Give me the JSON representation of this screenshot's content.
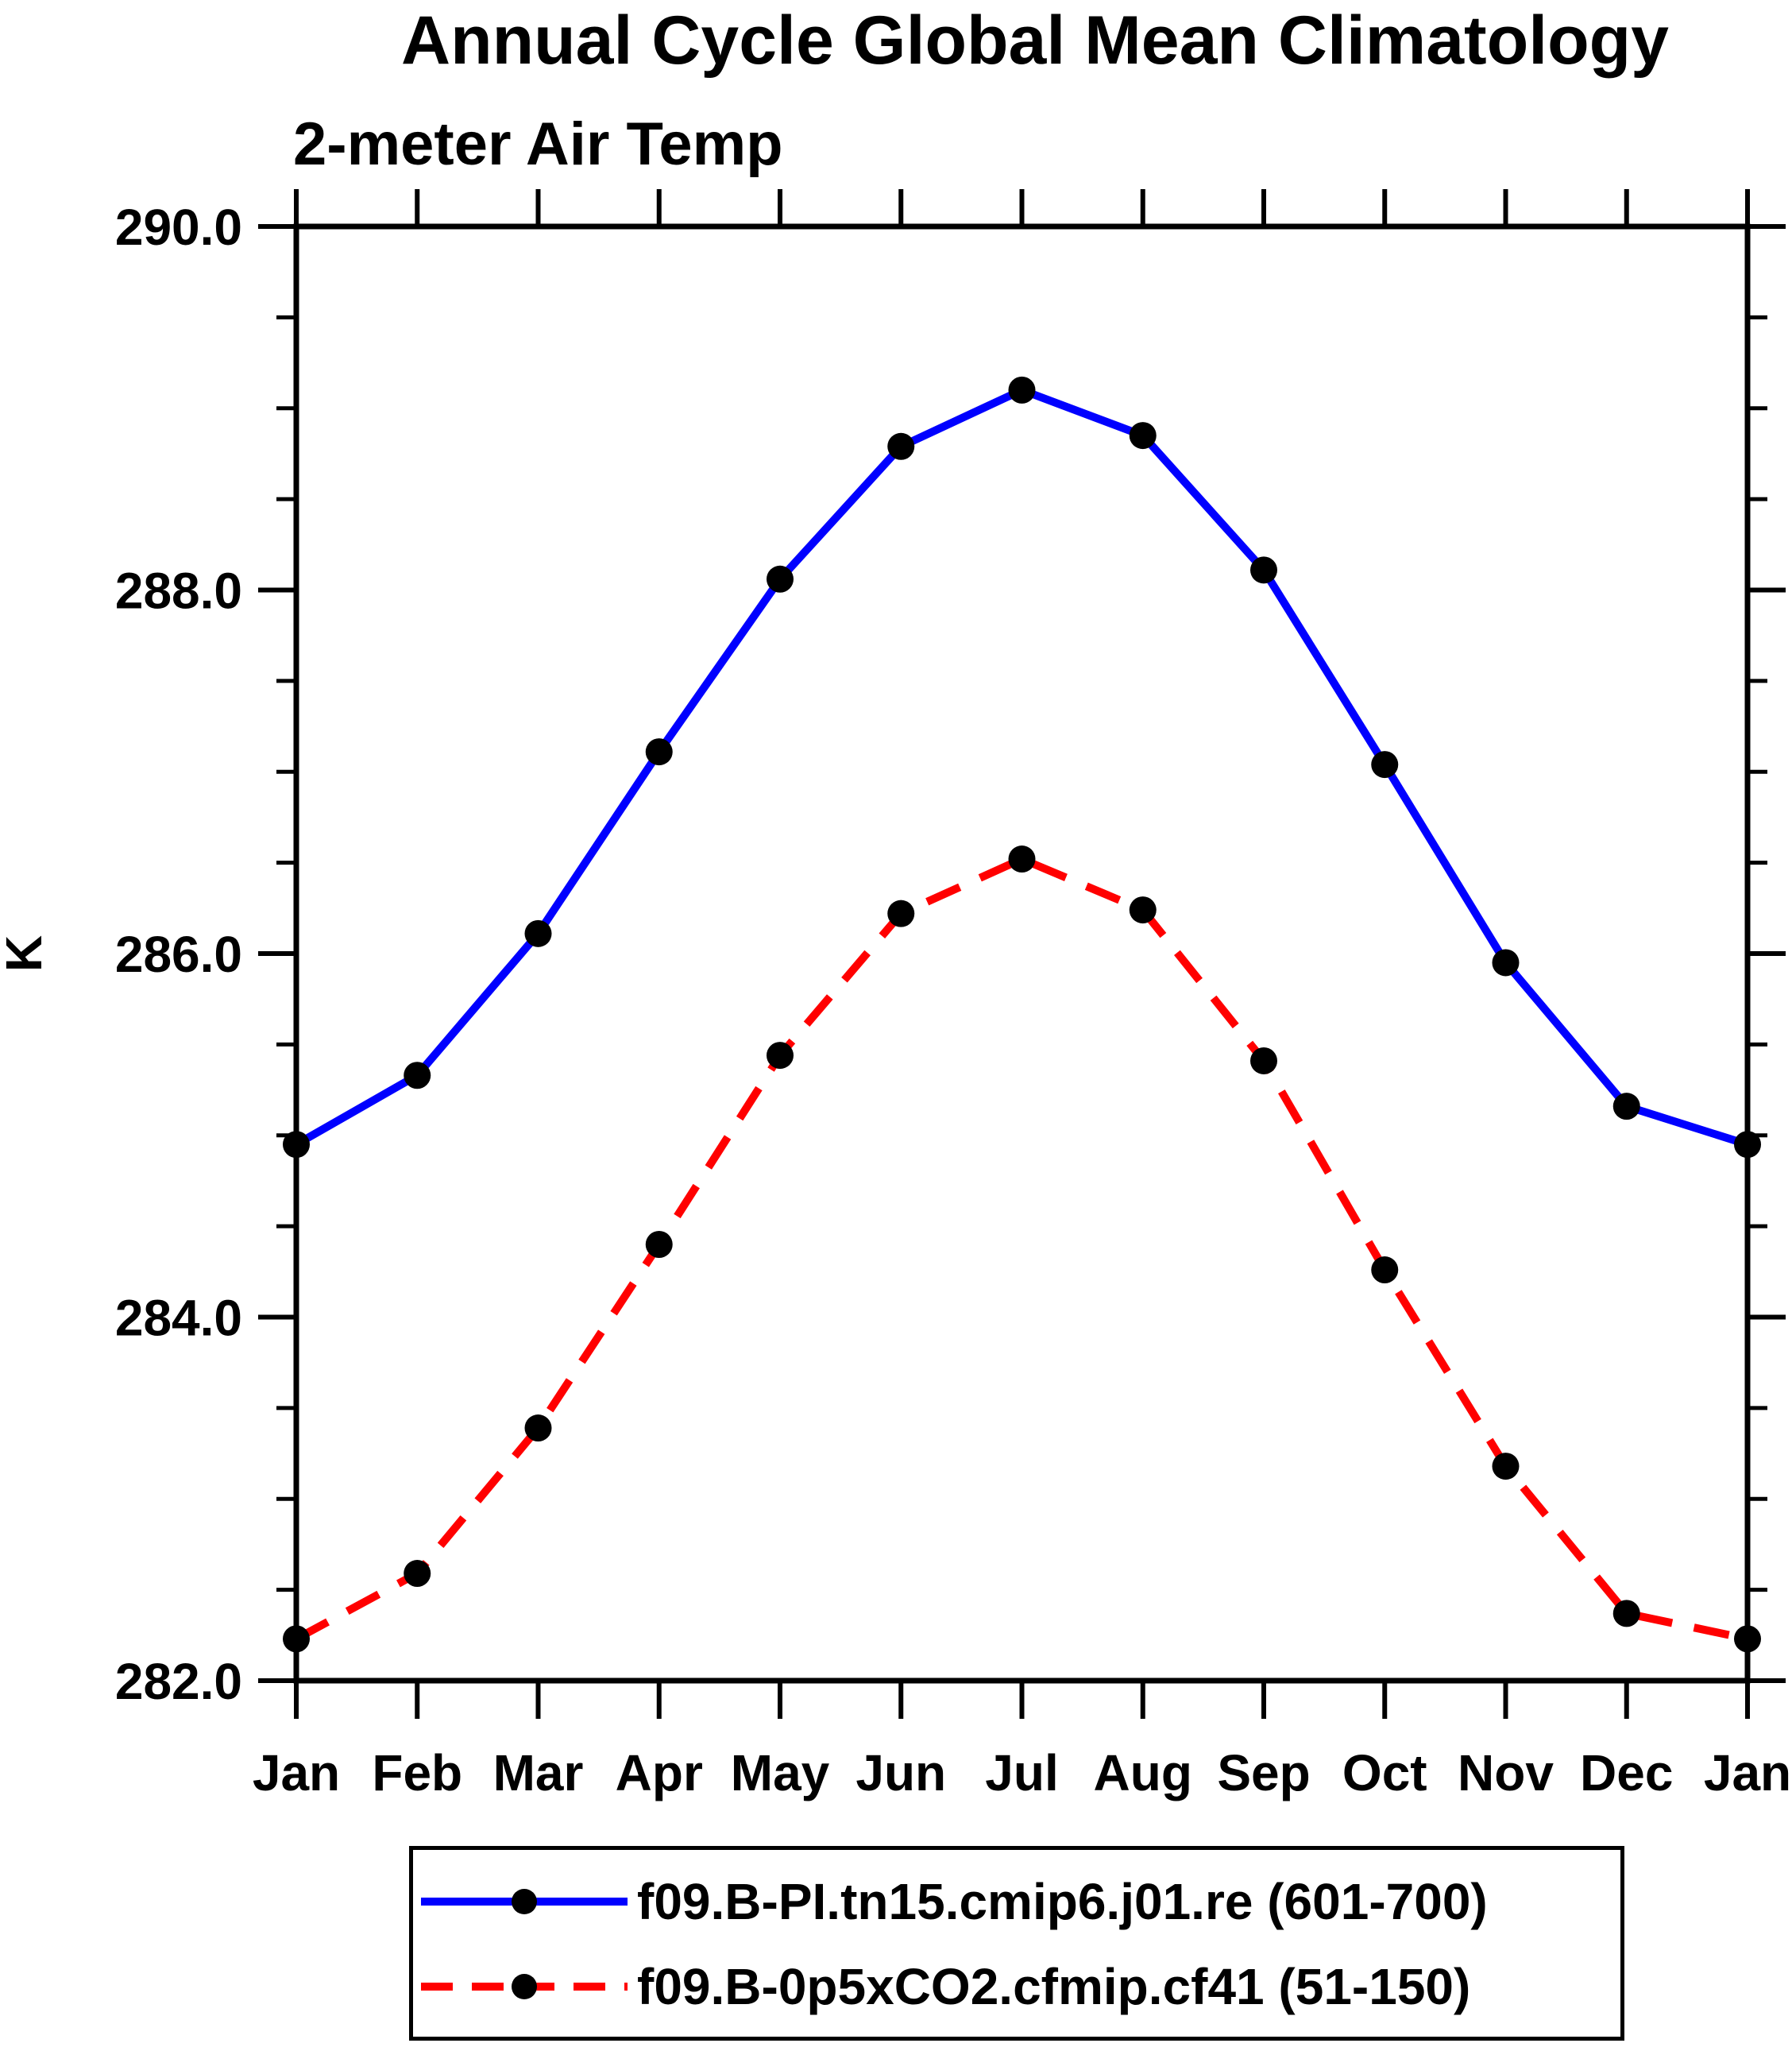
{
  "title": "Annual Cycle Global Mean Climatology",
  "subtitle": "2-meter Air Temp",
  "ylabel": "K",
  "colors": {
    "axis": "#000000",
    "marker": "#000000",
    "series1": "#0000ff",
    "series2": "#ff0000"
  },
  "chart_data": {
    "type": "line",
    "categories": [
      "Jan",
      "Feb",
      "Mar",
      "Apr",
      "May",
      "Jun",
      "Jul",
      "Aug",
      "Sep",
      "Oct",
      "Nov",
      "Dec",
      "Jan"
    ],
    "series": [
      {
        "name": "f09.B-PI.tn15.cmip6.j01.re (601-700)",
        "color": "#0000ff",
        "line_style": "solid",
        "marker": "circle",
        "values": [
          284.95,
          285.33,
          286.11,
          287.11,
          288.06,
          288.79,
          289.1,
          288.85,
          288.11,
          287.04,
          285.95,
          285.16,
          284.95
        ]
      },
      {
        "name": "f09.B-0p5xCO2.cfmip.cf41 (51-150)",
        "color": "#ff0000",
        "line_style": "dashed",
        "marker": "circle",
        "values": [
          282.23,
          282.59,
          283.39,
          284.4,
          285.44,
          286.22,
          286.52,
          286.24,
          285.41,
          284.26,
          283.18,
          282.37,
          282.23
        ]
      }
    ],
    "xlabel": "",
    "ylabel": "K",
    "ylim": [
      282.0,
      290.0
    ],
    "yticks_major": [
      282.0,
      284.0,
      286.0,
      288.0,
      290.0
    ],
    "ytick_labels": [
      "282.0",
      "284.0",
      "286.0",
      "288.0",
      "290.0"
    ],
    "yminor_step": 0.5,
    "grid": false,
    "legend_position": "bottom"
  }
}
